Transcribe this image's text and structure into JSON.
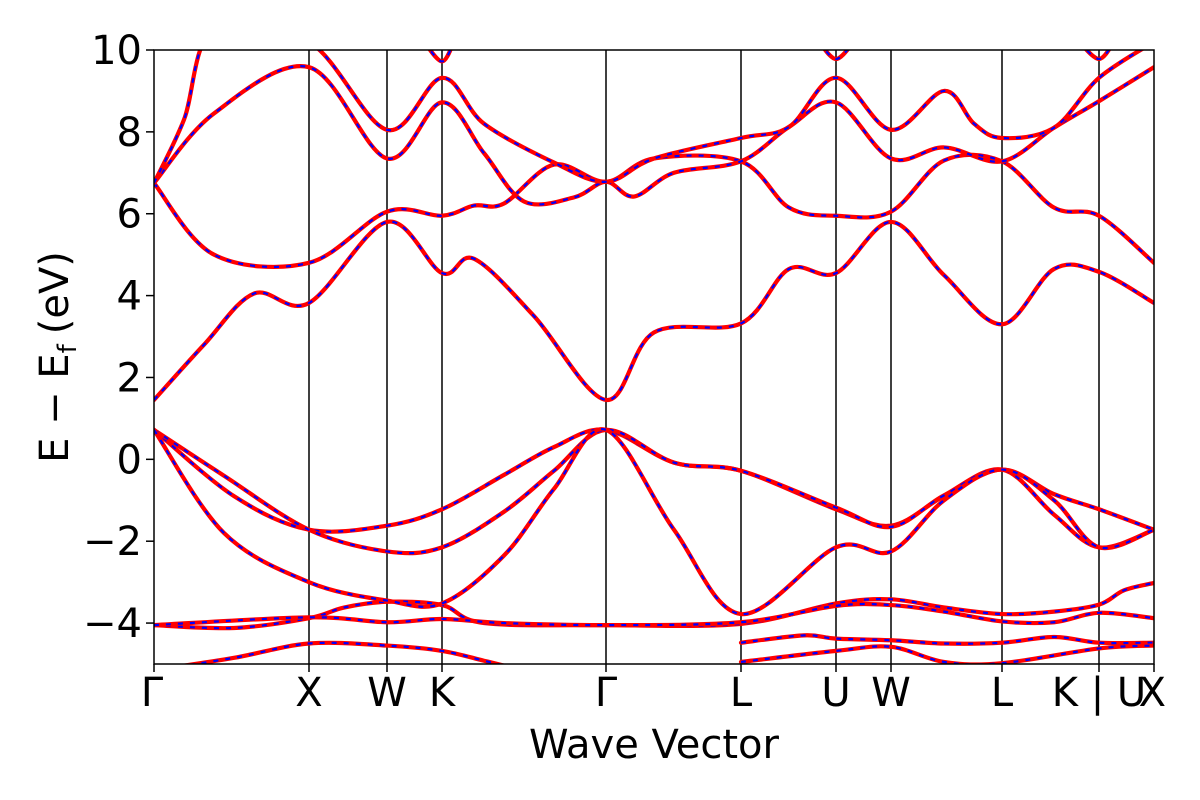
{
  "chart_data": {
    "type": "line",
    "title": "",
    "xlabel": "Wave Vector",
    "ylabel_main": "E − E",
    "ylabel_sub": "f",
    "ylabel_unit": "(eV)",
    "ylim": [
      -5,
      10
    ],
    "yticks": [
      -4,
      -2,
      0,
      2,
      4,
      6,
      8,
      10
    ],
    "ytick_labels": [
      "−4",
      "−2",
      "0",
      "2",
      "4",
      "6",
      "8",
      "10"
    ],
    "kpath_labels": [
      "Γ",
      "X",
      "W",
      "K",
      "Γ",
      "L",
      "U",
      "W",
      "L",
      "K | U",
      "X"
    ],
    "kpath_positions": [
      0,
      0.155,
      0.233,
      0.288,
      0.452,
      0.587,
      0.682,
      0.737,
      0.848,
      0.945,
      1.0
    ],
    "xlim": [
      0,
      1
    ],
    "series_styles": [
      {
        "color": "#ff0000",
        "style": "solid"
      },
      {
        "color": "#0000ff",
        "style": "dashed"
      }
    ],
    "bands": [
      [
        [
          0,
          -4.05
        ],
        [
          0.08,
          -4.12
        ],
        [
          0.155,
          -3.88
        ],
        [
          0.19,
          -3.62
        ],
        [
          0.233,
          -3.48
        ],
        [
          0.288,
          -3.56
        ],
        [
          0.33,
          -4.0
        ],
        [
          0.452,
          -4.05
        ],
        [
          0.587,
          -4.02
        ],
        [
          0.682,
          -3.52
        ],
        [
          0.737,
          -3.42
        ],
        [
          0.79,
          -3.62
        ],
        [
          0.848,
          -3.78
        ],
        [
          0.9,
          -3.72
        ],
        [
          0.945,
          -3.55
        ],
        [
          0.97,
          -3.2
        ],
        [
          1.0,
          -3.02
        ]
      ],
      [
        [
          0,
          -4.05
        ],
        [
          0.155,
          -3.86
        ],
        [
          0.233,
          -3.98
        ],
        [
          0.288,
          -3.9
        ],
        [
          0.35,
          -4.0
        ],
        [
          0.452,
          -4.05
        ],
        [
          0.587,
          -3.98
        ],
        [
          0.682,
          -3.58
        ],
        [
          0.737,
          -3.56
        ],
        [
          0.79,
          -3.72
        ],
        [
          0.848,
          -3.96
        ],
        [
          0.9,
          -3.98
        ],
        [
          0.945,
          -3.75
        ],
        [
          1.0,
          -3.88
        ]
      ],
      [
        [
          0,
          -5.15
        ],
        [
          0.08,
          -4.85
        ],
        [
          0.155,
          -4.5
        ],
        [
          0.233,
          -4.55
        ],
        [
          0.288,
          -4.68
        ],
        [
          0.33,
          -4.92
        ],
        [
          0.36,
          -5.1
        ]
      ],
      [
        [
          0.587,
          -4.48
        ],
        [
          0.65,
          -4.3
        ],
        [
          0.682,
          -4.38
        ],
        [
          0.737,
          -4.42
        ],
        [
          0.79,
          -4.5
        ],
        [
          0.848,
          -4.48
        ],
        [
          0.9,
          -4.34
        ],
        [
          0.945,
          -4.48
        ],
        [
          1.0,
          -4.48
        ]
      ],
      [
        [
          0.587,
          -4.95
        ],
        [
          0.682,
          -4.68
        ],
        [
          0.737,
          -4.58
        ],
        [
          0.79,
          -4.95
        ],
        [
          0.848,
          -4.98
        ],
        [
          0.945,
          -4.62
        ],
        [
          1.0,
          -4.55
        ]
      ],
      [
        [
          0,
          0.72
        ],
        [
          0.08,
          -0.9
        ],
        [
          0.155,
          -1.72
        ],
        [
          0.233,
          -1.62
        ],
        [
          0.288,
          -1.22
        ],
        [
          0.35,
          -0.38
        ],
        [
          0.4,
          0.3
        ],
        [
          0.452,
          0.72
        ],
        [
          0.52,
          -0.08
        ],
        [
          0.587,
          -0.28
        ],
        [
          0.682,
          -1.22
        ],
        [
          0.737,
          -1.62
        ],
        [
          0.79,
          -0.9
        ],
        [
          0.848,
          -0.25
        ],
        [
          0.9,
          -0.85
        ],
        [
          0.945,
          -1.22
        ],
        [
          1.0,
          -1.72
        ]
      ],
      [
        [
          0,
          0.72
        ],
        [
          0.07,
          -0.4
        ],
        [
          0.155,
          -1.72
        ],
        [
          0.233,
          -2.25
        ],
        [
          0.288,
          -2.15
        ],
        [
          0.35,
          -1.28
        ],
        [
          0.4,
          -0.28
        ],
        [
          0.452,
          0.72
        ],
        [
          0.52,
          -0.08
        ],
        [
          0.587,
          -0.28
        ],
        [
          0.682,
          -1.18
        ],
        [
          0.737,
          -1.65
        ],
        [
          0.79,
          -0.88
        ],
        [
          0.848,
          -0.25
        ],
        [
          0.9,
          -1.35
        ],
        [
          0.945,
          -2.15
        ],
        [
          1.0,
          -1.72
        ]
      ],
      [
        [
          0,
          0.72
        ],
        [
          0.07,
          -1.8
        ],
        [
          0.155,
          -3.0
        ],
        [
          0.233,
          -3.45
        ],
        [
          0.288,
          -3.52
        ],
        [
          0.35,
          -2.35
        ],
        [
          0.4,
          -0.72
        ],
        [
          0.452,
          0.72
        ],
        [
          0.52,
          -1.72
        ],
        [
          0.587,
          -3.78
        ],
        [
          0.682,
          -2.15
        ],
        [
          0.737,
          -2.25
        ],
        [
          0.79,
          -1.0
        ],
        [
          0.848,
          -0.25
        ],
        [
          0.9,
          -1.0
        ],
        [
          0.945,
          -2.15
        ],
        [
          1.0,
          -1.72
        ]
      ],
      [
        [
          0,
          1.45
        ],
        [
          0.05,
          2.8
        ],
        [
          0.1,
          4.05
        ],
        [
          0.155,
          3.82
        ],
        [
          0.233,
          5.8
        ],
        [
          0.288,
          4.55
        ],
        [
          0.32,
          4.9
        ],
        [
          0.38,
          3.5
        ],
        [
          0.452,
          1.45
        ],
        [
          0.5,
          3.1
        ],
        [
          0.587,
          3.32
        ],
        [
          0.635,
          4.65
        ],
        [
          0.682,
          4.55
        ],
        [
          0.737,
          5.8
        ],
        [
          0.79,
          4.5
        ],
        [
          0.848,
          3.3
        ],
        [
          0.9,
          4.65
        ],
        [
          0.945,
          4.58
        ],
        [
          1.0,
          3.82
        ]
      ],
      [
        [
          0,
          6.75
        ],
        [
          0.06,
          5.0
        ],
        [
          0.155,
          4.8
        ],
        [
          0.233,
          6.05
        ],
        [
          0.288,
          5.95
        ],
        [
          0.32,
          6.2
        ],
        [
          0.35,
          6.25
        ],
        [
          0.4,
          7.2
        ],
        [
          0.452,
          6.78
        ],
        [
          0.5,
          7.35
        ],
        [
          0.587,
          7.28
        ],
        [
          0.635,
          6.15
        ],
        [
          0.682,
          5.95
        ],
        [
          0.737,
          6.05
        ],
        [
          0.79,
          7.3
        ],
        [
          0.848,
          7.28
        ],
        [
          0.9,
          6.15
        ],
        [
          0.945,
          5.95
        ],
        [
          1.0,
          4.8
        ]
      ],
      [
        [
          0,
          6.75
        ],
        [
          0.06,
          8.45
        ],
        [
          0.155,
          9.58
        ],
        [
          0.233,
          7.35
        ],
        [
          0.288,
          8.72
        ],
        [
          0.33,
          7.48
        ],
        [
          0.37,
          6.3
        ],
        [
          0.42,
          6.4
        ],
        [
          0.452,
          6.78
        ],
        [
          0.48,
          6.42
        ],
        [
          0.52,
          7.0
        ],
        [
          0.587,
          7.28
        ],
        [
          0.635,
          8.12
        ],
        [
          0.682,
          8.72
        ],
        [
          0.737,
          7.35
        ],
        [
          0.79,
          7.62
        ],
        [
          0.848,
          7.28
        ],
        [
          0.9,
          8.1
        ],
        [
          0.945,
          8.75
        ],
        [
          1.0,
          9.58
        ]
      ],
      [
        [
          0,
          6.75
        ],
        [
          0.03,
          8.3
        ],
        [
          0.06,
          10.5
        ],
        [
          0.155,
          10.2
        ],
        [
          0.233,
          8.05
        ],
        [
          0.288,
          9.32
        ],
        [
          0.33,
          8.2
        ],
        [
          0.4,
          7.25
        ],
        [
          0.452,
          6.78
        ],
        [
          0.5,
          7.35
        ],
        [
          0.587,
          7.85
        ],
        [
          0.635,
          8.12
        ],
        [
          0.682,
          9.32
        ],
        [
          0.737,
          8.05
        ],
        [
          0.79,
          9.0
        ],
        [
          0.82,
          8.2
        ],
        [
          0.848,
          7.85
        ],
        [
          0.9,
          8.1
        ],
        [
          0.945,
          9.32
        ],
        [
          1.0,
          10.2
        ]
      ],
      [
        [
          0.27,
          10.2
        ],
        [
          0.288,
          9.72
        ],
        [
          0.3,
          10.2
        ]
      ],
      [
        [
          0.665,
          10.2
        ],
        [
          0.682,
          9.78
        ],
        [
          0.7,
          10.2
        ]
      ],
      [
        [
          0.925,
          10.2
        ],
        [
          0.945,
          9.78
        ],
        [
          0.96,
          10.2
        ]
      ]
    ]
  }
}
